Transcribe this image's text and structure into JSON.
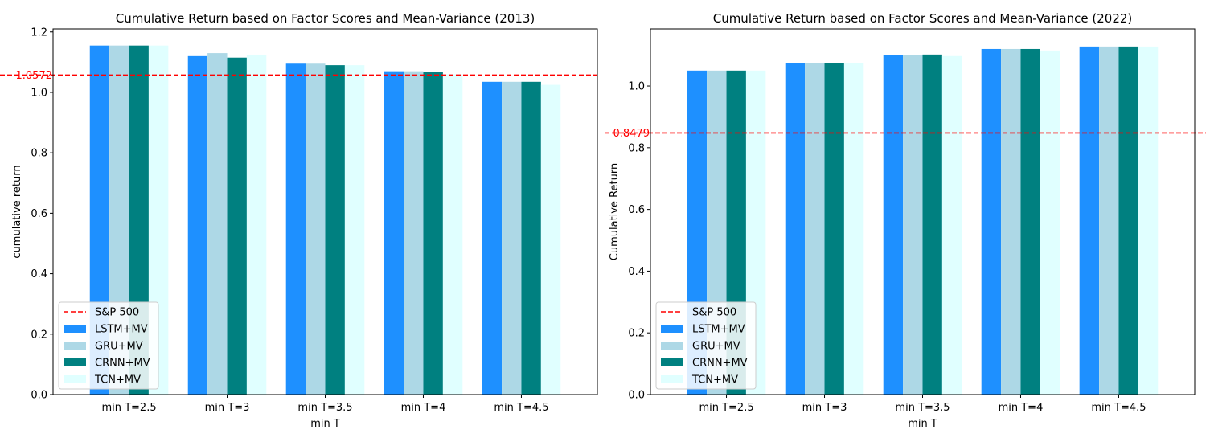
{
  "chart_data": [
    {
      "type": "bar",
      "title": "Cumulative Return based on Factor Scores and Mean-Variance (2013)",
      "xlabel": "min T",
      "ylabel": "cumulative return",
      "categories": [
        "min T=2.5",
        "min T=3",
        "min T=3.5",
        "min T=4",
        "min T=4.5"
      ],
      "ylim": [
        0,
        1.21
      ],
      "yticks": [
        0.0,
        0.2,
        0.4,
        0.6,
        0.8,
        1.0,
        1.2
      ],
      "ytick_labels": [
        "0.0",
        "0.2",
        "0.4",
        "0.6",
        "0.8",
        "1.0",
        "1.2"
      ],
      "series": [
        {
          "name": "LSTM+MV",
          "color": "#1e90ff",
          "values": [
            1.155,
            1.12,
            1.095,
            1.07,
            1.035
          ]
        },
        {
          "name": "GRU+MV",
          "color": "#add8e6",
          "values": [
            1.155,
            1.13,
            1.095,
            1.07,
            1.035
          ]
        },
        {
          "name": "CRNN+MV",
          "color": "#008080",
          "values": [
            1.155,
            1.115,
            1.09,
            1.068,
            1.035
          ]
        },
        {
          "name": "TCN+MV",
          "color": "#e0ffff",
          "values": [
            1.155,
            1.125,
            1.09,
            1.06,
            1.025
          ]
        }
      ],
      "reference_line": {
        "name": "S&P 500",
        "value": 1.0572,
        "label": "1.0572",
        "color": "#ff0000",
        "style": "dashed"
      },
      "legend": {
        "position": "lower-left",
        "entries": [
          "S&P 500",
          "LSTM+MV",
          "GRU+MV",
          "CRNN+MV",
          "TCN+MV"
        ]
      },
      "grid": false
    },
    {
      "type": "bar",
      "title": "Cumulative Return based on Factor Scores and Mean-Variance (2022)",
      "xlabel": "min T",
      "ylabel": "Cumulative Return",
      "categories": [
        "min T=2.5",
        "min T=3",
        "min T=3.5",
        "min T=4",
        "min T=4.5"
      ],
      "ylim": [
        0,
        1.185
      ],
      "yticks": [
        0.0,
        0.2,
        0.4,
        0.6,
        0.8,
        1.0
      ],
      "ytick_labels": [
        "0.0",
        "0.2",
        "0.4",
        "0.6",
        "0.8",
        "1.0"
      ],
      "series": [
        {
          "name": "LSTM+MV",
          "color": "#1e90ff",
          "values": [
            1.05,
            1.073,
            1.1,
            1.12,
            1.128
          ]
        },
        {
          "name": "GRU+MV",
          "color": "#add8e6",
          "values": [
            1.05,
            1.073,
            1.1,
            1.12,
            1.128
          ]
        },
        {
          "name": "CRNN+MV",
          "color": "#008080",
          "values": [
            1.05,
            1.073,
            1.102,
            1.12,
            1.128
          ]
        },
        {
          "name": "TCN+MV",
          "color": "#e0ffff",
          "values": [
            1.05,
            1.073,
            1.097,
            1.115,
            1.128
          ]
        }
      ],
      "reference_line": {
        "name": "S&P 500",
        "value": 0.8479,
        "label": "0.8479",
        "color": "#ff0000",
        "style": "dashed"
      },
      "legend": {
        "position": "lower-left",
        "entries": [
          "S&P 500",
          "LSTM+MV",
          "GRU+MV",
          "CRNN+MV",
          "TCN+MV"
        ]
      },
      "grid": false
    }
  ]
}
